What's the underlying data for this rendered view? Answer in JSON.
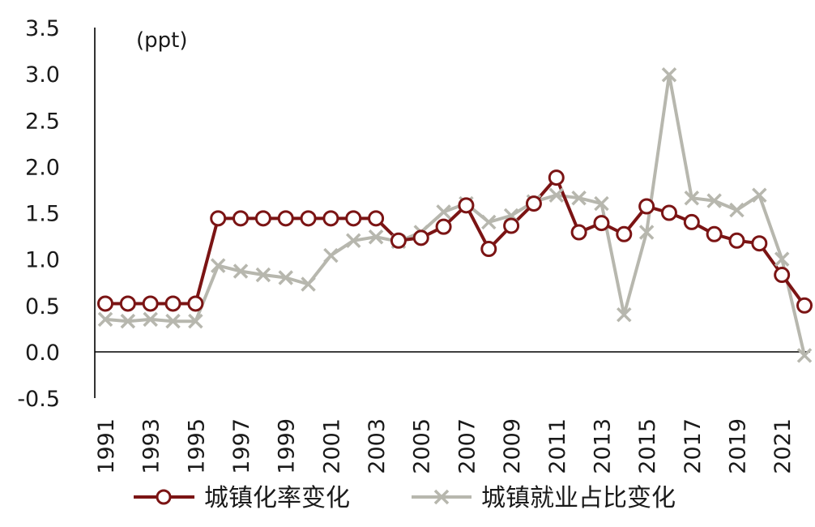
{
  "chart_data": {
    "type": "line",
    "unit_label": "(ppt)",
    "x": [
      1991,
      1992,
      1993,
      1994,
      1995,
      1996,
      1997,
      1998,
      1999,
      2000,
      2001,
      2002,
      2003,
      2004,
      2005,
      2006,
      2007,
      2008,
      2009,
      2010,
      2011,
      2012,
      2013,
      2014,
      2015,
      2016,
      2017,
      2018,
      2019,
      2020,
      2021,
      2022
    ],
    "xtick_labels": [
      "1991",
      "1993",
      "1995",
      "1997",
      "1999",
      "2001",
      "2003",
      "2005",
      "2007",
      "2009",
      "2011",
      "2013",
      "2015",
      "2017",
      "2019",
      "2021"
    ],
    "ylim": [
      -0.5,
      3.5
    ],
    "ytick_labels": [
      "-0.5",
      "0.0",
      "0.5",
      "1.0",
      "1.5",
      "2.0",
      "2.5",
      "3.0",
      "3.5"
    ],
    "grid": false,
    "legend_position": "bottom",
    "series": [
      {
        "name": "城镇化率变化",
        "color": "#7b1414",
        "marker": "circle",
        "values": [
          0.52,
          0.52,
          0.52,
          0.52,
          0.52,
          1.44,
          1.44,
          1.44,
          1.44,
          1.44,
          1.44,
          1.44,
          1.44,
          1.2,
          1.23,
          1.35,
          1.58,
          1.11,
          1.36,
          1.6,
          1.88,
          1.29,
          1.39,
          1.27,
          1.57,
          1.5,
          1.4,
          1.27,
          1.2,
          1.17,
          0.83,
          0.5
        ]
      },
      {
        "name": "城镇就业占比变化",
        "color": "#b7b7ae",
        "marker": "x",
        "values": [
          0.35,
          0.33,
          0.35,
          0.33,
          0.33,
          0.93,
          0.87,
          0.83,
          0.8,
          0.73,
          1.04,
          1.2,
          1.24,
          1.19,
          1.29,
          1.51,
          1.6,
          1.4,
          1.47,
          1.62,
          1.69,
          1.66,
          1.6,
          0.4,
          1.29,
          2.99,
          1.66,
          1.63,
          1.53,
          1.69,
          1.0,
          -0.04
        ]
      }
    ]
  }
}
